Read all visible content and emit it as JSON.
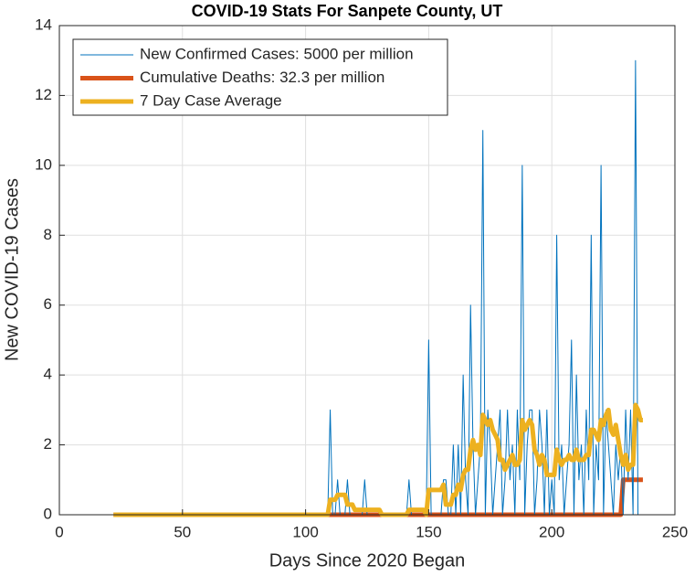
{
  "chart_data": {
    "type": "line",
    "title": "COVID-19 Stats For Sanpete County, UT",
    "xlabel": "Days Since 2020 Began",
    "ylabel": "New COVID-19 Cases",
    "xlim": [
      0,
      250
    ],
    "xticks": [
      0,
      50,
      100,
      150,
      200,
      250
    ],
    "ylim": [
      0,
      14
    ],
    "yticks": [
      0,
      2,
      4,
      6,
      8,
      10,
      12,
      14
    ],
    "grid": true,
    "legend": "upper left",
    "x": [
      22,
      108,
      109,
      110,
      111,
      112,
      113,
      114,
      115,
      116,
      117,
      118,
      119,
      120,
      121,
      122,
      123,
      124,
      125,
      126,
      127,
      128,
      129,
      130,
      131,
      132,
      133,
      134,
      135,
      136,
      137,
      138,
      139,
      140,
      141,
      142,
      143,
      144,
      145,
      146,
      147,
      148,
      149,
      150,
      151,
      152,
      153,
      154,
      155,
      156,
      157,
      158,
      159,
      160,
      161,
      162,
      163,
      164,
      165,
      166,
      167,
      168,
      169,
      170,
      171,
      172,
      173,
      174,
      175,
      176,
      177,
      178,
      179,
      180,
      181,
      182,
      183,
      184,
      185,
      186,
      187,
      188,
      189,
      190,
      191,
      192,
      193,
      194,
      195,
      196,
      197,
      198,
      199,
      200,
      201,
      202,
      203,
      204,
      205,
      206,
      207,
      208,
      209,
      210,
      211,
      212,
      213,
      214,
      215,
      216,
      217,
      218,
      219,
      220,
      221,
      222,
      223,
      224,
      225,
      226,
      227,
      228,
      229,
      230,
      231,
      232,
      233,
      234,
      235,
      236,
      237
    ],
    "series": [
      {
        "name": "New Confirmed Cases: 5000 per million",
        "color": "#0072BD",
        "values": [
          0,
          0,
          0,
          3,
          0,
          0,
          1,
          0,
          0,
          0,
          1,
          0,
          0,
          0,
          0,
          0,
          0,
          1,
          0,
          0,
          0,
          0,
          0,
          0,
          0,
          0,
          0,
          0,
          0,
          0,
          0,
          0,
          0,
          0,
          0,
          1,
          0,
          0,
          0,
          0,
          0,
          0,
          0,
          5,
          0,
          0,
          0,
          0,
          0,
          1,
          1,
          0,
          0,
          2,
          0,
          2,
          0,
          4,
          1,
          0,
          6,
          2,
          0,
          1,
          2,
          11,
          0,
          3,
          2,
          0,
          1,
          2,
          3,
          0,
          1,
          3,
          1,
          2,
          0,
          3,
          1,
          10,
          0,
          2,
          3,
          3,
          0,
          1,
          3,
          2,
          0,
          3,
          0,
          1,
          0,
          8,
          1,
          2,
          0,
          1,
          2,
          5,
          0,
          4,
          1,
          2,
          0,
          3,
          1,
          8,
          0,
          2,
          1,
          10,
          0,
          3,
          2,
          1,
          0,
          2,
          1,
          2,
          0,
          3,
          1,
          3,
          0,
          13,
          0,
          0,
          0
        ]
      },
      {
        "name": "Cumulative Deaths: 32.3 per million",
        "color": "#D95319",
        "values": [
          0,
          0,
          0,
          0,
          0,
          0,
          0,
          0,
          0,
          0,
          0,
          0,
          0,
          0,
          0,
          0,
          0,
          0,
          0,
          0,
          0,
          0,
          0,
          0,
          0,
          0,
          0,
          0,
          0,
          0,
          0,
          0,
          0,
          0,
          0,
          0,
          0,
          0,
          0,
          0,
          0,
          0,
          0,
          0,
          0,
          0,
          0,
          0,
          0,
          0,
          0,
          0,
          0,
          0,
          0,
          0,
          0,
          0,
          0,
          0,
          0,
          0,
          0,
          0,
          0,
          0,
          0,
          0,
          0,
          0,
          0,
          0,
          0,
          0,
          0,
          0,
          0,
          0,
          0,
          0,
          0,
          0,
          0,
          0,
          0,
          0,
          0,
          0,
          0,
          0,
          0,
          0,
          0,
          0,
          0,
          0,
          0,
          0,
          0,
          0,
          0,
          0,
          0,
          0,
          0,
          0,
          0,
          0,
          0,
          0,
          0,
          0,
          0,
          0,
          0,
          0,
          0,
          0,
          0,
          0,
          0,
          0,
          1,
          1,
          1,
          1,
          1,
          1,
          1,
          1,
          1
        ]
      },
      {
        "name": "7 Day Case Average",
        "color": "#EDB120",
        "values": [
          0,
          0,
          0,
          0.43,
          0.43,
          0.43,
          0.57,
          0.57,
          0.57,
          0.57,
          0.29,
          0.29,
          0.29,
          0.14,
          0.14,
          0.14,
          0.14,
          0.14,
          0.14,
          0.14,
          0.14,
          0.14,
          0.14,
          0.14,
          0,
          0,
          0,
          0,
          0,
          0,
          0,
          0,
          0,
          0,
          0,
          0.14,
          0.14,
          0.14,
          0.14,
          0.14,
          0.14,
          0.14,
          0,
          0.71,
          0.71,
          0.71,
          0.71,
          0.71,
          0.71,
          0.86,
          0.29,
          0.29,
          0.29,
          0.57,
          0.57,
          0.86,
          0.71,
          1.14,
          1.29,
          1.29,
          1.86,
          2.14,
          1.86,
          2,
          1.71,
          2.86,
          2.71,
          2.57,
          2.71,
          2.43,
          2.29,
          2.14,
          1.57,
          1.57,
          1.29,
          1.43,
          1.57,
          1.71,
          1.43,
          1.43,
          1.57,
          2.71,
          2.43,
          2.57,
          2.71,
          2.57,
          1.86,
          1.71,
          1.43,
          1.71,
          1.57,
          1.14,
          1.14,
          1.14,
          1.14,
          1.86,
          1.57,
          1.43,
          1.57,
          1.57,
          1.71,
          1.57,
          1.57,
          1.86,
          1.57,
          1.57,
          1.57,
          1.71,
          1.71,
          2.43,
          2.43,
          2.29,
          2.14,
          2.71,
          2.57,
          2.86,
          3,
          2.43,
          2.29,
          2.57,
          2.14,
          1.71,
          1.43,
          1.71,
          1.29,
          1.43,
          1.43,
          3.14,
          3,
          2.71,
          2.71
        ]
      }
    ]
  }
}
